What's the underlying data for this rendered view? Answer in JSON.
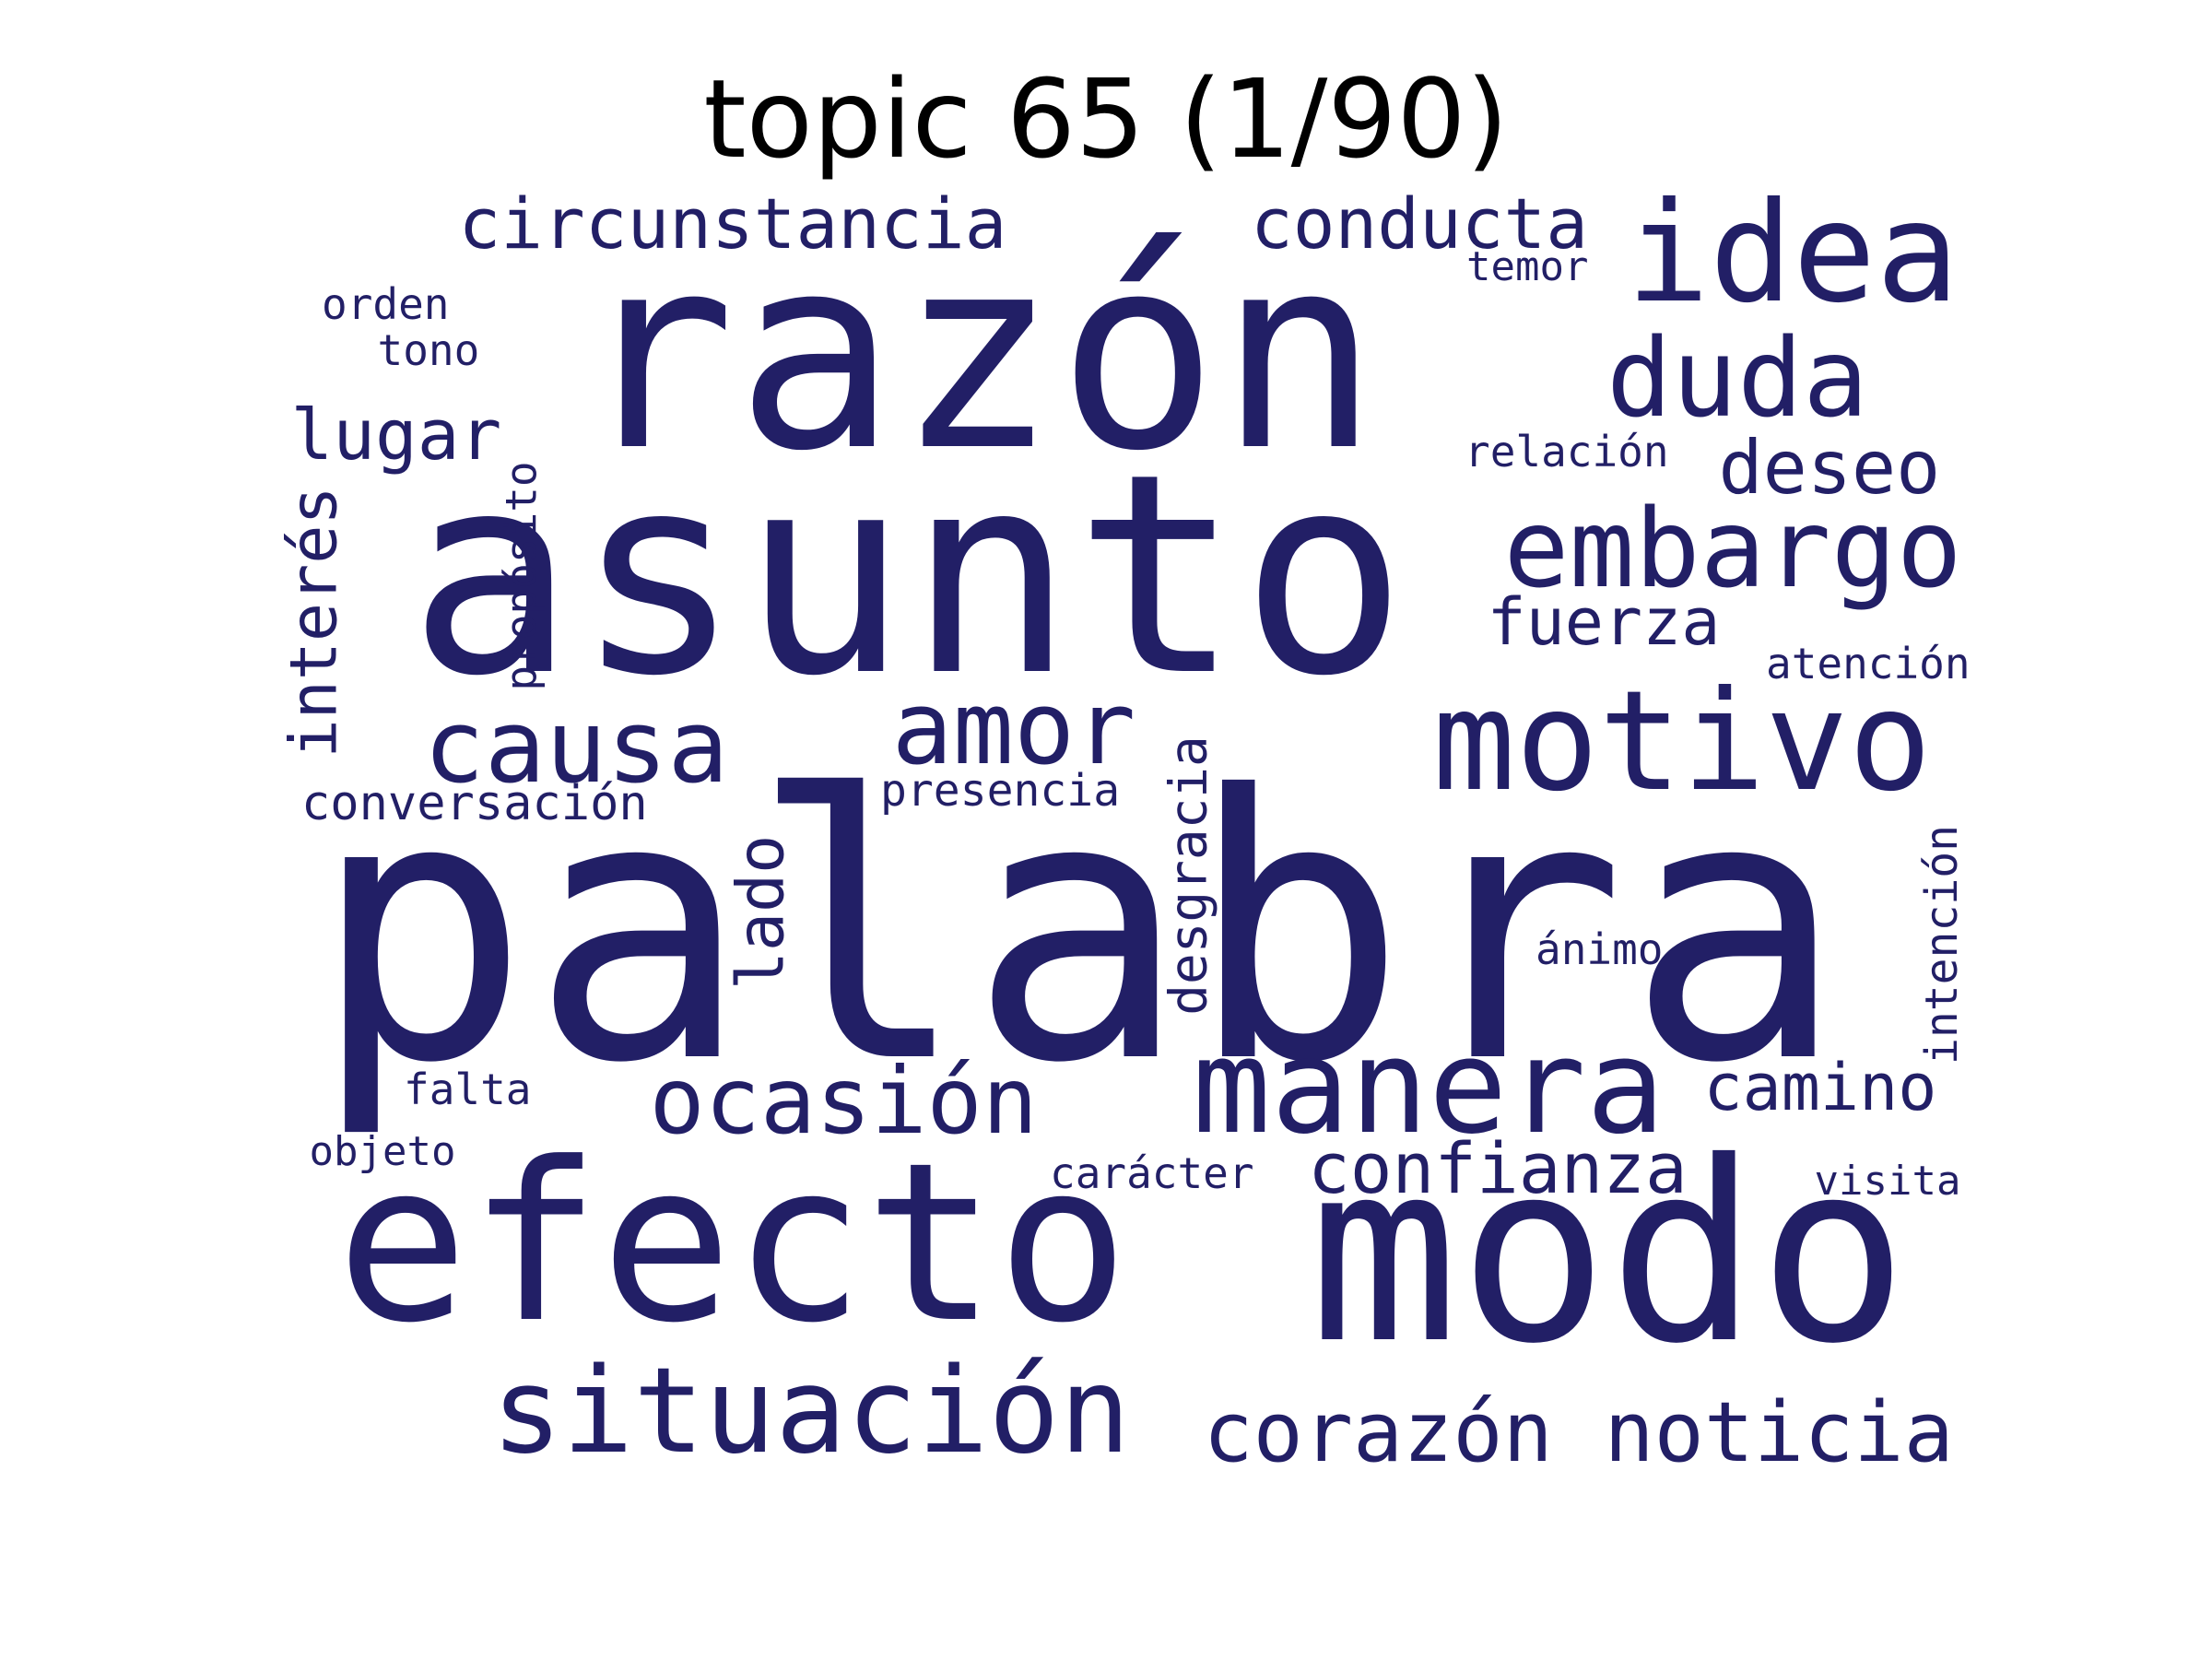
{
  "title": "topic 65 (1/90)",
  "colors": {
    "word": "#221f66",
    "title": "#000000",
    "background": "#ffffff"
  },
  "words": [
    {
      "text": "palabra",
      "weight": 1.0,
      "vertical": false
    },
    {
      "text": "asunto",
      "weight": 0.93,
      "vertical": false
    },
    {
      "text": "razón",
      "weight": 0.9,
      "vertical": false
    },
    {
      "text": "modo",
      "weight": 0.86,
      "vertical": false
    },
    {
      "text": "efecto",
      "weight": 0.66,
      "vertical": false
    },
    {
      "text": "motivo",
      "weight": 0.46,
      "vertical": false
    },
    {
      "text": "manera",
      "weight": 0.44,
      "vertical": false
    },
    {
      "text": "idea",
      "weight": 0.42,
      "vertical": false
    },
    {
      "text": "situación",
      "weight": 0.4,
      "vertical": false
    },
    {
      "text": "embargo",
      "weight": 0.36,
      "vertical": false
    },
    {
      "text": "duda",
      "weight": 0.34,
      "vertical": false
    },
    {
      "text": "causa",
      "weight": 0.32,
      "vertical": false
    },
    {
      "text": "amor",
      "weight": 0.32,
      "vertical": false
    },
    {
      "text": "ocasión",
      "weight": 0.31,
      "vertical": false
    },
    {
      "text": "corazón",
      "weight": 0.28,
      "vertical": false
    },
    {
      "text": "noticia",
      "weight": 0.28,
      "vertical": false
    },
    {
      "text": "deseo",
      "weight": 0.25,
      "vertical": false
    },
    {
      "text": "circunstancia",
      "weight": 0.23,
      "vertical": false
    },
    {
      "text": "conducta",
      "weight": 0.23,
      "vertical": false
    },
    {
      "text": "confianza",
      "weight": 0.23,
      "vertical": false
    },
    {
      "text": "lugar",
      "weight": 0.23,
      "vertical": false
    },
    {
      "text": "fuerza",
      "weight": 0.22,
      "vertical": false
    },
    {
      "text": "camino",
      "weight": 0.22,
      "vertical": false
    },
    {
      "text": "interés",
      "weight": 0.22,
      "vertical": true
    },
    {
      "text": "lado",
      "weight": 0.22,
      "vertical": true
    },
    {
      "text": "desgracia",
      "weight": 0.16,
      "vertical": true
    },
    {
      "text": "conversación",
      "weight": 0.15,
      "vertical": false
    },
    {
      "text": "presencia",
      "weight": 0.14,
      "vertical": false
    },
    {
      "text": "intención",
      "weight": 0.14,
      "vertical": true
    },
    {
      "text": "propósito",
      "weight": 0.13,
      "vertical": true
    },
    {
      "text": "relación",
      "weight": 0.13,
      "vertical": false
    },
    {
      "text": "atención",
      "weight": 0.13,
      "vertical": false
    },
    {
      "text": "ánimo",
      "weight": 0.13,
      "vertical": false
    },
    {
      "text": "carácter",
      "weight": 0.13,
      "vertical": false
    },
    {
      "text": "falta",
      "weight": 0.13,
      "vertical": false
    },
    {
      "text": "orden",
      "weight": 0.12,
      "vertical": false
    },
    {
      "text": "tono",
      "weight": 0.12,
      "vertical": false
    },
    {
      "text": "temor",
      "weight": 0.12,
      "vertical": false
    },
    {
      "text": "objeto",
      "weight": 0.12,
      "vertical": false
    },
    {
      "text": "visita",
      "weight": 0.12,
      "vertical": false
    }
  ]
}
